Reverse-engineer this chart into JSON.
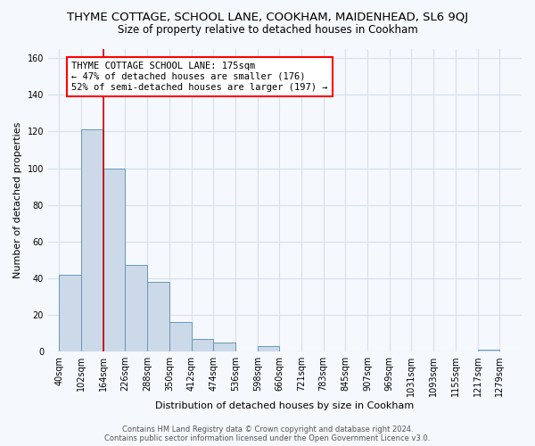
{
  "title": "THYME COTTAGE, SCHOOL LANE, COOKHAM, MAIDENHEAD, SL6 9QJ",
  "subtitle": "Size of property relative to detached houses in Cookham",
  "xlabel": "Distribution of detached houses by size in Cookham",
  "ylabel": "Number of detached properties",
  "bar_heights": [
    42,
    121,
    100,
    47,
    38,
    16,
    7,
    5,
    3,
    1
  ],
  "bar_left_edges": [
    40,
    102,
    164,
    226,
    288,
    350,
    412,
    474,
    598,
    1217
  ],
  "bin_width": 62,
  "bar_color": "#ccd9e8",
  "bar_edgecolor": "#6699bb",
  "xtick_labels": [
    "40sqm",
    "102sqm",
    "164sqm",
    "226sqm",
    "288sqm",
    "350sqm",
    "412sqm",
    "474sqm",
    "536sqm",
    "598sqm",
    "660sqm",
    "721sqm",
    "783sqm",
    "845sqm",
    "907sqm",
    "969sqm",
    "1031sqm",
    "1093sqm",
    "1155sqm",
    "1217sqm",
    "1279sqm"
  ],
  "xtick_positions": [
    40,
    102,
    164,
    226,
    288,
    350,
    412,
    474,
    536,
    598,
    660,
    721,
    783,
    845,
    907,
    969,
    1031,
    1093,
    1155,
    1217,
    1279
  ],
  "vline_x": 164,
  "vline_color": "#cc0000",
  "ylim": [
    0,
    165
  ],
  "xlim": [
    9,
    1341
  ],
  "yticks": [
    0,
    20,
    40,
    60,
    80,
    100,
    120,
    140,
    160
  ],
  "annotation_text": "THYME COTTAGE SCHOOL LANE: 175sqm\n← 47% of detached houses are smaller (176)\n52% of semi-detached houses are larger (197) →",
  "footer_line1": "Contains HM Land Registry data © Crown copyright and database right 2024.",
  "footer_line2": "Contains public sector information licensed under the Open Government Licence v3.0.",
  "background_color": "#f5f8fc",
  "grid_color": "#d8e0ea",
  "title_fontsize": 9.5,
  "subtitle_fontsize": 8.5,
  "axis_label_fontsize": 8,
  "tick_fontsize": 7
}
